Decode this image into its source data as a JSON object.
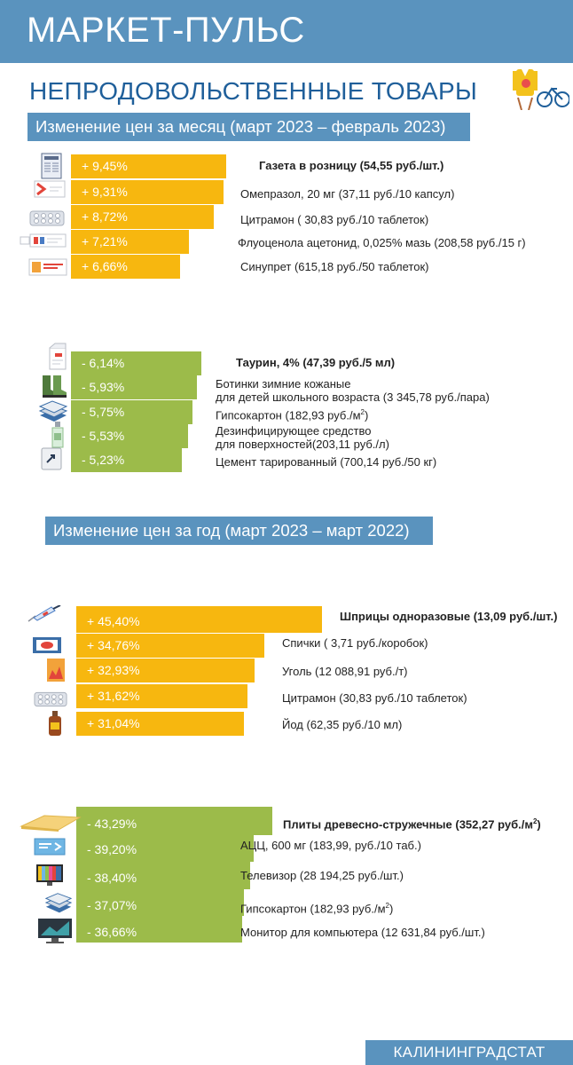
{
  "header": {
    "title": "МАРКЕТ-ПУЛЬС"
  },
  "subtitle": "НЕПРОДОВОЛЬСТВЕННЫЕ ТОВАРЫ",
  "section_month_title": "Изменение цен за месяц (март 2023 – февраль 2023)",
  "section_year_title": "Изменение цен за год (март 2023 – март 2022)",
  "footer": "КАЛИНИНГРАДСТАТ",
  "colors": {
    "increase": "#f7b70f",
    "decrease": "#9cbb4a",
    "header": "#5a93be",
    "subtitle": "#1f5f9a"
  },
  "chart_data": [
    {
      "type": "bar",
      "title": "Изменение цен за месяц (март 2023 – февраль 2023) — рост",
      "series": [
        {
          "name": "Изменение, %",
          "values": [
            9.45,
            9.31,
            8.72,
            7.21,
            6.66
          ]
        }
      ],
      "categories": [
        "Газета в розницу (54,55 руб./шт.)",
        "Омепразол, 20 мг (37,11 руб./10 капсул)",
        "Цитрамон ( 30,83 руб./10 таблеток)",
        "Флуоценола ацетонид, 0,025% мазь (208,58 руб./15 г)",
        "Синупрет (615,18 руб./50 таблеток)"
      ],
      "value_labels": [
        "+ 9,45%",
        "+ 9,31%",
        "+ 8,72%",
        "+ 7,21%",
        "+ 6,66%"
      ],
      "icons": [
        "newspaper-icon",
        "medicine-box-icon",
        "pill-blister-icon",
        "ointment-tube-icon",
        "medicine-box-icon"
      ]
    },
    {
      "type": "bar",
      "title": "Изменение цен за месяц (март 2023 – февраль 2023) — снижение",
      "series": [
        {
          "name": "Изменение, %",
          "values": [
            -6.14,
            -5.93,
            -5.75,
            -5.53,
            -5.23
          ]
        }
      ],
      "categories": [
        "Таурин, 4% (47,39 руб./5 мл)",
        "Ботинки зимние кожаные\nдля детей школьного возраста (3 345,78 руб./пара)",
        "Гипсокартон (182,93 руб./м²)",
        "Дезинфицирующее средство\nдля поверхностей(203,11 руб./л)",
        "Цемент тарированный (700,14 руб./50 кг)"
      ],
      "value_labels": [
        "- 6,14%",
        "- 5,93%",
        "- 5,75%",
        "- 5,53%",
        "- 5,23%"
      ],
      "icons": [
        "eye-drops-icon",
        "boots-icon",
        "drywall-stack-icon",
        "spray-bottle-icon",
        "cement-bag-icon"
      ]
    },
    {
      "type": "bar",
      "title": "Изменение цен за год (март 2023 – март 2022) — рост",
      "series": [
        {
          "name": "Изменение, %",
          "values": [
            45.4,
            34.76,
            32.93,
            31.62,
            31.04
          ]
        }
      ],
      "categories": [
        "Шприцы одноразовые (13,09 руб./шт.)",
        "Спички ( 3,71 руб./коробок)",
        "Уголь (12 088,91 руб./т)",
        "Цитрамон (30,83 руб./10 таблеток)",
        "Йод (62,35 руб./10 мл)"
      ],
      "value_labels": [
        "+ 45,40%",
        "+ 34,76%",
        "+ 32,93%",
        "+ 31,62%",
        "+ 31,04%"
      ],
      "icons": [
        "syringe-icon",
        "matchbox-icon",
        "coal-bag-icon",
        "pill-blister-icon",
        "iodine-bottle-icon"
      ]
    },
    {
      "type": "bar",
      "title": "Изменение цен за год (март 2023 – март 2022) — снижение",
      "series": [
        {
          "name": "Изменение, %",
          "values": [
            -43.29,
            -39.2,
            -38.4,
            -37.07,
            -36.66
          ]
        }
      ],
      "categories": [
        "Плиты древесно-стружечные (352,27 руб./м²)",
        "АЦЦ, 600 мг (183,99, руб./10 таб.)",
        "Телевизор  (28 194,25 руб./шт.)",
        "Гипсокартон (182,93 руб./м²)",
        "Монитор для компьютера (12 631,84 руб./шт.)"
      ],
      "value_labels": [
        "- 43,29%",
        "- 39,20%",
        "- 38,40%",
        "- 37,07%",
        "- 36,66%"
      ],
      "icons": [
        "chipboard-icon",
        "medicine-box-icon",
        "tv-icon",
        "drywall-stack-icon",
        "monitor-icon"
      ]
    }
  ]
}
